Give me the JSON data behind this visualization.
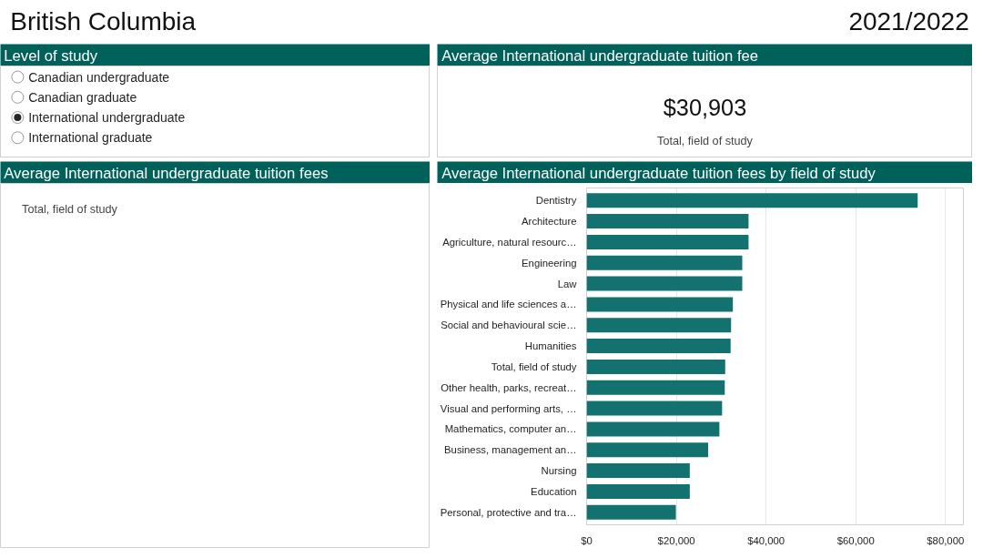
{
  "chart_data": [
    {
      "type": "other",
      "title": "British Columbia",
      "subtitle": "2021/2022"
    },
    {
      "type": "other",
      "title": "Level of study",
      "categories": [
        "Canadian undergraduate",
        "Canadian graduate",
        "International undergraduate",
        "International graduate"
      ],
      "colors": [
        "#ffffff",
        "#ffffff",
        "#252423",
        "#ffffff"
      ]
    },
    {
      "type": "other",
      "title": "Average International undergraduate tuition fee",
      "annotations": [
        "$30,903",
        "Total, field of study"
      ]
    },
    {
      "type": "other",
      "title": "Average International undergraduate tuition fees",
      "annotations": [
        "Total, field of study"
      ]
    },
    {
      "type": "bar",
      "orientation": "horizontal",
      "title": "Average International undergraduate tuition fees by field of study",
      "categories": [
        "Dentistry",
        "Architecture",
        "Agriculture, natural resourc…",
        "Engineering",
        "Law",
        "Physical and life sciences a…",
        "Social and behavioural scie…",
        "Humanities",
        "Total, field of study",
        "Other health, parks, recreat…",
        "Visual and performing arts, …",
        "Mathematics, computer an…",
        "Business, management an…",
        "Nursing",
        "Education",
        "Personal, protective and tra…"
      ],
      "values": [
        73800,
        36100,
        36100,
        34700,
        34700,
        32600,
        32200,
        32100,
        30900,
        30800,
        30200,
        29600,
        27100,
        23000,
        23000,
        19900
      ],
      "color": "#137270",
      "xlim": [
        0,
        84000
      ],
      "xticks": [
        {
          "value": 0,
          "label": "$0"
        },
        {
          "value": 20000,
          "label": "$20,000"
        },
        {
          "value": 40000,
          "label": "$40,000"
        },
        {
          "value": 60000,
          "label": "$60,000"
        },
        {
          "value": 80000,
          "label": "$80,000"
        }
      ],
      "grid": "x"
    }
  ]
}
